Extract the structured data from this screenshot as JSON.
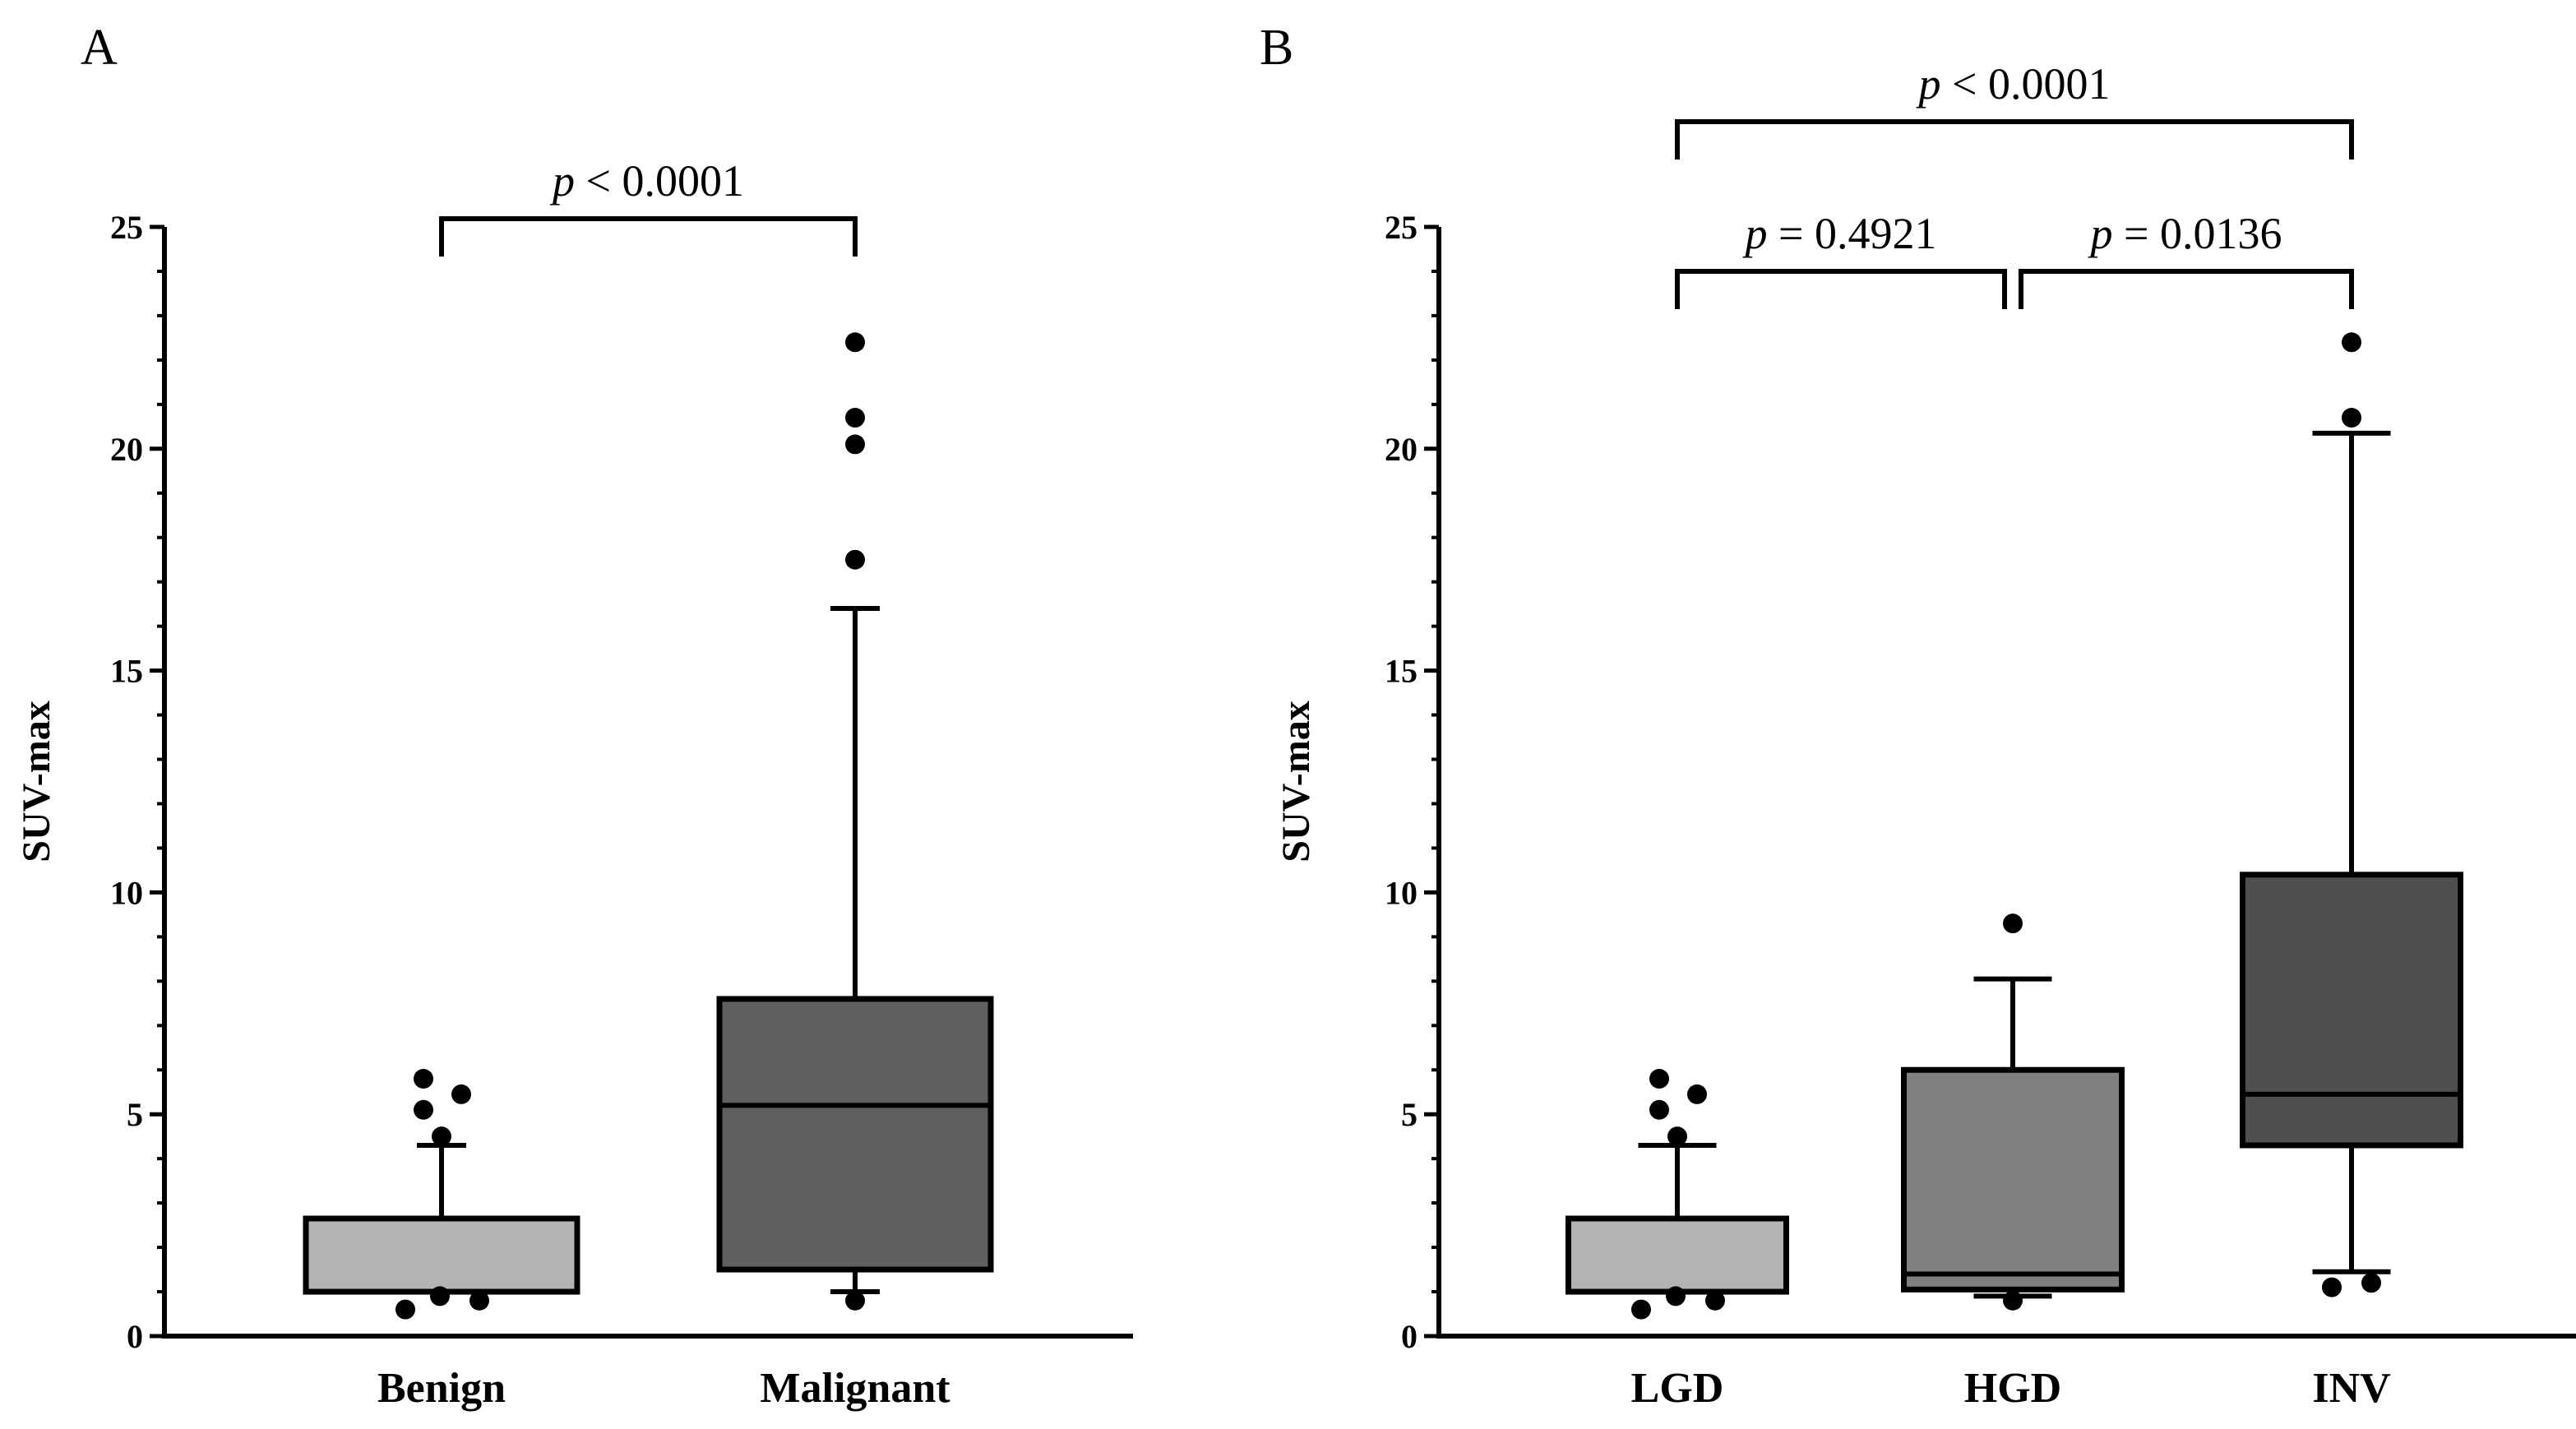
{
  "chart_data": [
    {
      "panel": "A",
      "type": "boxplot",
      "ylabel": "SUV-max",
      "ylim": [
        0,
        25
      ],
      "yticks": [
        "0",
        "5",
        "10",
        "15",
        "20",
        "25"
      ],
      "categories": [
        "Benign",
        "Malignant"
      ],
      "colors": [
        "#b3b3b3",
        "#5f5f5f"
      ],
      "boxes": [
        {
          "category": "Benign",
          "whisker_low": 1.0,
          "q1": 1.0,
          "median": 1.0,
          "q3": 2.65,
          "whisker_high": 4.3,
          "outliers": [
            5.8,
            5.1,
            5.45,
            4.5,
            0.6,
            0.9,
            0.8
          ]
        },
        {
          "category": "Malignant",
          "whisker_low": 1.0,
          "q1": 1.5,
          "median": 5.2,
          "q3": 7.6,
          "whisker_high": 16.4,
          "outliers": [
            22.4,
            20.7,
            20.1,
            17.5,
            0.8
          ]
        }
      ],
      "comparisons": [
        {
          "from": "Benign",
          "to": "Malignant",
          "level": 0,
          "p_symbol": "p",
          "p_value": " < 0.0001"
        }
      ]
    },
    {
      "panel": "B",
      "type": "boxplot",
      "ylabel": "SUV-max",
      "ylim": [
        0,
        25
      ],
      "yticks": [
        "0",
        "5",
        "10",
        "15",
        "20",
        "25"
      ],
      "categories": [
        "LGD",
        "HGD",
        "INV"
      ],
      "colors": [
        "#b3b3b3",
        "#7f7f7f",
        "#4f4f4f"
      ],
      "boxes": [
        {
          "category": "LGD",
          "whisker_low": 1.0,
          "q1": 1.0,
          "median": 1.0,
          "q3": 2.65,
          "whisker_high": 4.3,
          "outliers": [
            5.8,
            5.1,
            5.45,
            4.5,
            0.6,
            0.9,
            0.8
          ]
        },
        {
          "category": "HGD",
          "whisker_low": 0.9,
          "q1": 1.05,
          "median": 1.4,
          "q3": 6.0,
          "whisker_high": 8.05,
          "outliers": [
            9.3,
            0.8
          ]
        },
        {
          "category": "INV",
          "whisker_low": 1.45,
          "q1": 4.3,
          "median": 5.45,
          "q3": 10.4,
          "whisker_high": 20.35,
          "outliers": [
            22.4,
            20.7,
            1.1,
            1.2
          ]
        }
      ],
      "comparisons": [
        {
          "from": "LGD",
          "to": "HGD",
          "level": 0,
          "p_symbol": "p",
          "p_value": " = 0.4921"
        },
        {
          "from": "HGD",
          "to": "INV",
          "level": 0,
          "p_symbol": "p",
          "p_value": " = 0.0136"
        },
        {
          "from": "LGD",
          "to": "INV",
          "level": 1,
          "p_symbol": "p",
          "p_value": " < 0.0001"
        }
      ]
    }
  ]
}
